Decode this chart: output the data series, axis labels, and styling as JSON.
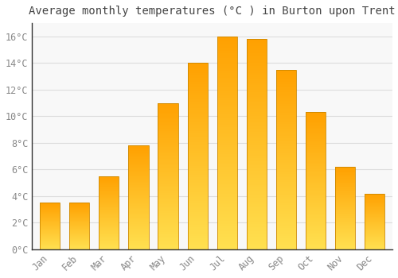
{
  "months": [
    "Jan",
    "Feb",
    "Mar",
    "Apr",
    "May",
    "Jun",
    "Jul",
    "Aug",
    "Sep",
    "Oct",
    "Nov",
    "Dec"
  ],
  "values": [
    3.5,
    3.5,
    5.5,
    7.8,
    11.0,
    14.0,
    16.0,
    15.8,
    13.5,
    10.3,
    6.2,
    4.2
  ],
  "title": "Average monthly temperatures (°C ) in Burton upon Trent",
  "bar_color_bottom": "#FFD84D",
  "bar_color_top": "#FFA500",
  "bar_edge_color": "#CC8800",
  "background_color": "#FFFFFF",
  "plot_bg_color": "#F8F8F8",
  "grid_color": "#DDDDDD",
  "tick_label_color": "#888888",
  "ylim": [
    0,
    17
  ],
  "yticks": [
    0,
    2,
    4,
    6,
    8,
    10,
    12,
    14,
    16
  ],
  "ytick_labels": [
    "0°C",
    "2°C",
    "4°C",
    "6°C",
    "8°C",
    "10°C",
    "12°C",
    "14°C",
    "16°C"
  ],
  "title_fontsize": 10,
  "tick_fontsize": 8.5,
  "title_color": "#444444",
  "axis_color": "#333333",
  "bar_width": 0.68
}
